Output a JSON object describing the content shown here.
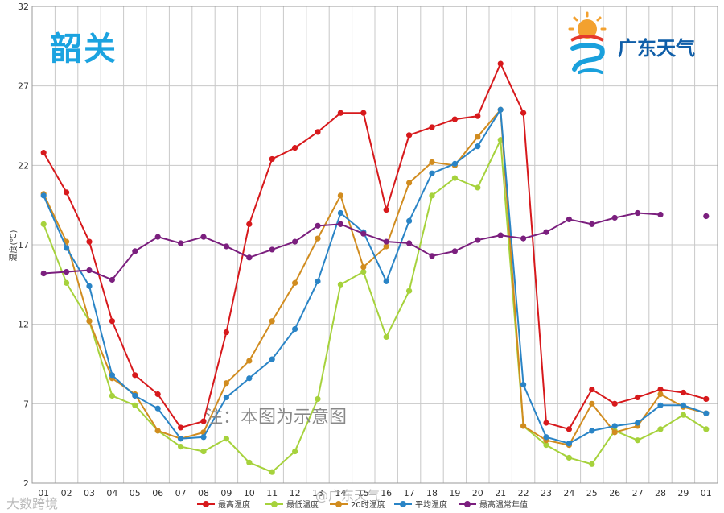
{
  "branding": {
    "city": "韶关",
    "logo_name": "广东天气",
    "note": "注：本图为示意图",
    "watermark_left": "大数跨境",
    "watermark_center": "@广东天气"
  },
  "colors": {
    "grid": "#c8c8c8",
    "axis_text": "#333333"
  },
  "chart_data": {
    "type": "line",
    "ylabel": "温度(℃)",
    "ylim": [
      2,
      32
    ],
    "yticks": [
      2,
      7,
      12,
      17,
      22,
      27,
      32
    ],
    "grid": true,
    "legend_position": "bottom",
    "categories": [
      "01",
      "02",
      "03",
      "04",
      "05",
      "06",
      "07",
      "08",
      "09",
      "10",
      "11",
      "12",
      "13",
      "14",
      "15",
      "16",
      "17",
      "18",
      "19",
      "20",
      "21",
      "22",
      "23",
      "24",
      "25",
      "26",
      "27",
      "28",
      "29",
      "01"
    ],
    "series": [
      {
        "name": "最高温度",
        "color": "#d7191c",
        "values": [
          22.8,
          20.3,
          17.2,
          12.2,
          8.8,
          7.6,
          5.5,
          5.9,
          11.5,
          18.3,
          22.4,
          23.1,
          24.1,
          25.3,
          25.3,
          19.2,
          23.9,
          24.4,
          24.9,
          25.1,
          28.4,
          25.3,
          5.8,
          5.4,
          7.9,
          7.0,
          7.4,
          7.9,
          7.7,
          7.3
        ]
      },
      {
        "name": "最低温度",
        "color": "#a6d23c",
        "values": [
          18.3,
          14.6,
          12.2,
          7.5,
          6.9,
          5.3,
          4.3,
          4.0,
          4.8,
          3.3,
          2.7,
          4.0,
          7.3,
          14.5,
          15.3,
          11.2,
          14.1,
          20.1,
          21.2,
          20.6,
          23.6,
          5.6,
          4.4,
          3.6,
          3.2,
          5.3,
          4.7,
          5.4,
          6.3,
          5.4
        ]
      },
      {
        "name": "20时温度",
        "color": "#d18c1f",
        "values": [
          20.2,
          17.2,
          12.2,
          8.6,
          7.6,
          5.3,
          4.8,
          5.2,
          8.3,
          9.7,
          12.2,
          14.6,
          17.4,
          20.1,
          15.6,
          16.9,
          20.9,
          22.2,
          22.0,
          23.8,
          25.5,
          5.6,
          4.7,
          4.4,
          7.0,
          5.2,
          5.6,
          7.6,
          6.8,
          6.4
        ]
      },
      {
        "name": "平均温度",
        "color": "#2a84c6",
        "values": [
          20.1,
          16.8,
          14.4,
          8.8,
          7.5,
          6.7,
          4.8,
          4.9,
          7.4,
          8.6,
          9.8,
          11.7,
          14.7,
          19.0,
          17.8,
          14.7,
          18.5,
          21.5,
          22.1,
          23.2,
          25.5,
          8.2,
          4.9,
          4.5,
          5.3,
          5.6,
          5.8,
          6.9,
          6.9,
          6.4
        ]
      },
      {
        "name": "最高温常年值",
        "color": "#7b1f7e",
        "values": [
          15.2,
          15.3,
          15.4,
          14.8,
          16.6,
          17.5,
          17.1,
          17.5,
          16.9,
          16.2,
          16.7,
          17.2,
          18.2,
          18.3,
          17.7,
          17.2,
          17.1,
          16.3,
          16.6,
          17.3,
          17.6,
          17.4,
          17.8,
          18.6,
          18.3,
          18.7,
          19.0,
          18.9,
          null,
          18.8
        ]
      }
    ]
  }
}
